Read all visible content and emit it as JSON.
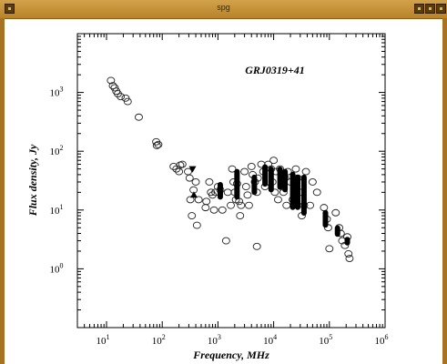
{
  "window": {
    "title": "spg"
  },
  "chart_data": {
    "type": "scatter",
    "title": "GRJ0319+41",
    "xlabel": "Frequency, MHz",
    "ylabel": "Flux density, Jy",
    "xscale": "log",
    "yscale": "log",
    "xlim": [
      3,
      1000000
    ],
    "ylim": [
      0.1,
      10000
    ],
    "grid": false,
    "x_ticks": [
      {
        "base": "10",
        "exp": "1",
        "value": 10
      },
      {
        "base": "10",
        "exp": "2",
        "value": 100
      },
      {
        "base": "10",
        "exp": "3",
        "value": 1000
      },
      {
        "base": "10",
        "exp": "4",
        "value": 10000
      },
      {
        "base": "10",
        "exp": "5",
        "value": 100000
      },
      {
        "base": "10",
        "exp": "6",
        "value": 1000000
      }
    ],
    "y_ticks": [
      {
        "base": "10",
        "exp": "0",
        "value": 1
      },
      {
        "base": "10",
        "exp": "1",
        "value": 10
      },
      {
        "base": "10",
        "exp": "2",
        "value": 100
      },
      {
        "base": "10",
        "exp": "3",
        "value": 1000
      }
    ],
    "series": [
      {
        "marker": "open-circle",
        "points": [
          [
            12,
            1600
          ],
          [
            13,
            1300
          ],
          [
            14,
            1200
          ],
          [
            15,
            1050
          ],
          [
            16,
            950
          ],
          [
            18,
            850
          ],
          [
            22,
            800
          ],
          [
            24,
            700
          ],
          [
            38,
            380
          ],
          [
            78,
            145
          ],
          [
            80,
            125
          ],
          [
            85,
            130
          ],
          [
            160,
            55
          ],
          [
            180,
            50
          ],
          [
            200,
            45
          ],
          [
            210,
            58
          ],
          [
            230,
            60
          ],
          [
            290,
            45
          ],
          [
            310,
            35
          ],
          [
            320,
            15
          ],
          [
            340,
            8
          ],
          [
            365,
            22
          ],
          [
            400,
            30
          ],
          [
            420,
            5.5
          ],
          [
            450,
            15
          ],
          [
            600,
            11
          ],
          [
            620,
            14
          ],
          [
            700,
            30
          ],
          [
            750,
            20
          ],
          [
            800,
            18
          ],
          [
            850,
            10
          ],
          [
            900,
            20
          ],
          [
            1000,
            25
          ],
          [
            1100,
            22
          ],
          [
            1200,
            10
          ],
          [
            1400,
            3
          ],
          [
            1500,
            20
          ],
          [
            1700,
            12
          ],
          [
            1800,
            50
          ],
          [
            1900,
            30
          ],
          [
            2000,
            20
          ],
          [
            2100,
            15
          ],
          [
            2200,
            28
          ],
          [
            2400,
            14
          ],
          [
            2500,
            8
          ],
          [
            2600,
            12
          ],
          [
            3000,
            45
          ],
          [
            3200,
            25
          ],
          [
            3400,
            18
          ],
          [
            3600,
            12
          ],
          [
            4000,
            55
          ],
          [
            4200,
            40
          ],
          [
            4600,
            30
          ],
          [
            5000,
            20
          ],
          [
            5200,
            35
          ],
          [
            5000,
            2.4
          ],
          [
            6000,
            60
          ],
          [
            6500,
            45
          ],
          [
            7000,
            25
          ],
          [
            8000,
            60
          ],
          [
            9000,
            50
          ],
          [
            9500,
            30
          ],
          [
            10000,
            70
          ],
          [
            10500,
            20
          ],
          [
            11000,
            45
          ],
          [
            12000,
            15
          ],
          [
            13000,
            50
          ],
          [
            14000,
            40
          ],
          [
            15000,
            20
          ],
          [
            16000,
            35
          ],
          [
            17000,
            12
          ],
          [
            18000,
            45
          ],
          [
            20000,
            30
          ],
          [
            22000,
            15
          ],
          [
            25000,
            50
          ],
          [
            27000,
            35
          ],
          [
            30000,
            20
          ],
          [
            32000,
            8
          ],
          [
            35000,
            12
          ],
          [
            38000,
            45
          ],
          [
            45000,
            12
          ],
          [
            50000,
            30
          ],
          [
            60000,
            20
          ],
          [
            80000,
            11
          ],
          [
            90000,
            7
          ],
          [
            95000,
            5
          ],
          [
            100000,
            2.2
          ],
          [
            130000,
            9
          ],
          [
            150000,
            5
          ],
          [
            160000,
            4
          ],
          [
            170000,
            3
          ],
          [
            190000,
            2.5
          ],
          [
            210000,
            3.5
          ],
          [
            220000,
            1.8
          ],
          [
            230000,
            1.5
          ]
        ]
      },
      {
        "marker": "filled-down-triangle",
        "points": [
          [
            350,
            50
          ]
        ]
      },
      {
        "marker": "filled-up-triangle",
        "points": [
          [
            370,
            18
          ]
        ]
      },
      {
        "marker": "filled-bar",
        "bars": [
          [
            1100,
            15,
            30
          ],
          [
            2200,
            15,
            50
          ],
          [
            4500,
            18,
            40
          ],
          [
            7000,
            25,
            60
          ],
          [
            9000,
            20,
            55
          ],
          [
            13000,
            22,
            55
          ],
          [
            16000,
            20,
            50
          ],
          [
            22000,
            10,
            45
          ],
          [
            27000,
            10,
            40
          ],
          [
            35000,
            8,
            40
          ],
          [
            85000,
            5,
            10
          ],
          [
            140000,
            3.5,
            5.5
          ],
          [
            210000,
            2.5,
            3.5
          ]
        ]
      }
    ]
  }
}
